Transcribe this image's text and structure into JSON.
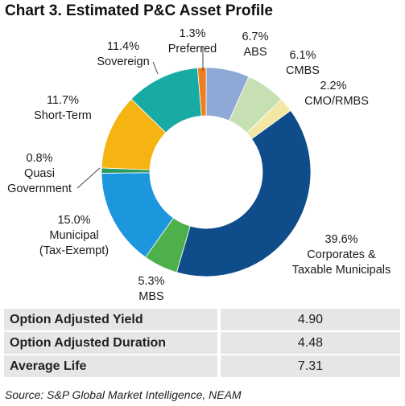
{
  "title": "Chart 3. Estimated P&C Asset Profile",
  "chart_data": {
    "type": "donut",
    "title": "Chart 3. Estimated P&C Asset Profile",
    "series": [
      {
        "label": "ABS",
        "pct": "6.7%",
        "value": 6.7,
        "color": "#8fa9d6"
      },
      {
        "label": "CMBS",
        "pct": "6.1%",
        "value": 6.1,
        "color": "#c6e0b4"
      },
      {
        "label": "CMO/RMBS",
        "pct": "2.2%",
        "value": 2.2,
        "color": "#f2e8a4"
      },
      {
        "label": "Corporates & Taxable Municipals",
        "pct": "39.6%",
        "value": 39.6,
        "color": "#0e4c8a"
      },
      {
        "label": "MBS",
        "pct": "5.3%",
        "value": 5.3,
        "color": "#4db04a"
      },
      {
        "label": "Municipal (Tax-Exempt)",
        "pct": "15.0%",
        "value": 15.0,
        "color": "#1c96dd"
      },
      {
        "label": "Quasi Government",
        "pct": "0.8%",
        "value": 0.8,
        "color": "#2c9a5a"
      },
      {
        "label": "Short-Term",
        "pct": "11.7%",
        "value": 11.7,
        "color": "#f6b413"
      },
      {
        "label": "Sovereign",
        "pct": "11.4%",
        "value": 11.4,
        "color": "#17aba3"
      },
      {
        "label": "Preferred",
        "pct": "1.3%",
        "value": 1.3,
        "color": "#f07e1e"
      }
    ],
    "labels_text": {
      "ABS": [
        "6.7%",
        "ABS"
      ],
      "CMBS": [
        "6.1%",
        "CMBS"
      ],
      "CMO": [
        "2.2%",
        "CMO/RMBS"
      ],
      "Corp": [
        "39.6%",
        "Corporates &",
        "Taxable Municipals"
      ],
      "MBS": [
        "5.3%",
        "MBS"
      ],
      "Muni": [
        "15.0%",
        "Municipal",
        "(Tax-Exempt)"
      ],
      "Quasi": [
        "0.8%",
        "Quasi",
        "Government"
      ],
      "Short": [
        "11.7%",
        "Short-Term"
      ],
      "Sov": [
        "11.4%",
        "Sovereign"
      ],
      "Pref": [
        "1.3%",
        "Preferred"
      ]
    }
  },
  "table": [
    {
      "label": "Option Adjusted Yield",
      "value": "4.90"
    },
    {
      "label": "Option Adjusted Duration",
      "value": "4.48"
    },
    {
      "label": "Average Life",
      "value": "7.31"
    }
  ],
  "source": "Source: S&P Global Market Intelligence, NEAM"
}
